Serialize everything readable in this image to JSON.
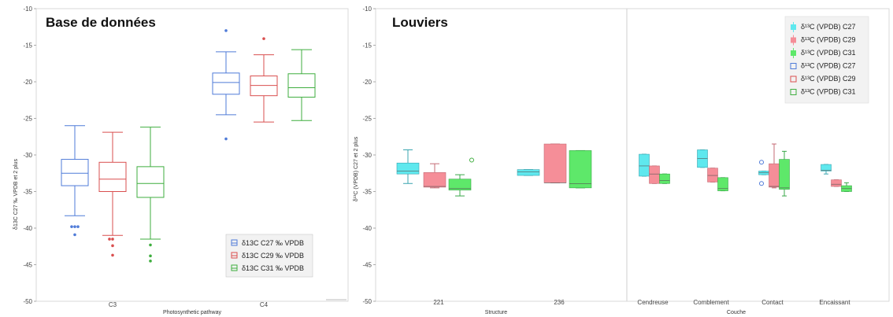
{
  "chart_data": [
    {
      "type": "boxplot",
      "title": "Base de données",
      "xlabel": "Photosynthetic pathway",
      "ylabel": "δ13C C27 ‰ VPDB et 2 plus",
      "ylim": [
        -50,
        -10
      ],
      "yticks": [
        -50,
        -45,
        -40,
        -35,
        -30,
        -25,
        -20,
        -15,
        -10
      ],
      "categories": [
        "C3",
        "C4"
      ],
      "legend_position": "bottom-right",
      "series": [
        {
          "name": "δ13C C27 ‰ VPDB",
          "color": "#4f7bd8",
          "boxes": [
            {
              "category": "C3",
              "whisker_low": -38.3,
              "q1": -34.2,
              "median": -32.5,
              "q3": -30.6,
              "whisker_high": -26.0,
              "outliers": [
                -39.8,
                -39.8,
                -39.8,
                -40.9
              ]
            },
            {
              "category": "C4",
              "whisker_low": -24.5,
              "q1": -21.7,
              "median": -20.1,
              "q3": -18.8,
              "whisker_high": -15.9,
              "outliers": [
                -13.0,
                -27.8
              ]
            }
          ]
        },
        {
          "name": "δ13C C29 ‰ VPDB",
          "color": "#d94f4f",
          "boxes": [
            {
              "category": "C3",
              "whisker_low": -41.0,
              "q1": -35.0,
              "median": -33.3,
              "q3": -31.0,
              "whisker_high": -26.9,
              "outliers": [
                -41.5,
                -41.5,
                -42.4,
                -43.7
              ]
            },
            {
              "category": "C4",
              "whisker_low": -25.5,
              "q1": -21.9,
              "median": -20.5,
              "q3": -19.2,
              "whisker_high": -16.3,
              "outliers": [
                -14.1
              ]
            }
          ]
        },
        {
          "name": "δ13C C31 ‰ VPDB",
          "color": "#3fae3f",
          "boxes": [
            {
              "category": "C3",
              "whisker_low": -41.5,
              "q1": -35.8,
              "median": -33.9,
              "q3": -31.6,
              "whisker_high": -26.2,
              "outliers": [
                -42.3,
                -43.8,
                -44.5
              ]
            },
            {
              "category": "C4",
              "whisker_low": -25.3,
              "q1": -22.1,
              "median": -20.8,
              "q3": -18.9,
              "whisker_high": -15.6,
              "outliers": []
            }
          ]
        }
      ]
    },
    {
      "type": "boxplot",
      "title": "Louviers",
      "xlabel_left": "Structure",
      "xlabel_right": "Couche",
      "ylabel": "δ¹³C (VPDB) C27 et 2 plus",
      "ylim": [
        -50,
        -10
      ],
      "yticks": [
        -50,
        -45,
        -40,
        -35,
        -30,
        -25,
        -20,
        -15,
        -10
      ],
      "categories_left": [
        "221",
        "236"
      ],
      "categories_right": [
        "Cendreuse",
        "Comblement",
        "Contact",
        "Encaissant"
      ],
      "legend_position": "top-right",
      "legend": [
        {
          "label": "δ¹³C (VPDB) C27",
          "color": "#5fe8ee",
          "style": "filled"
        },
        {
          "label": "δ¹³C (VPDB) C29",
          "color": "#f58e98",
          "style": "filled"
        },
        {
          "label": "δ¹³C (VPDB) C31",
          "color": "#5ee86a",
          "style": "filled"
        },
        {
          "label": "δ¹³C (VPDB) C27",
          "color": "#4f7bd8",
          "style": "open"
        },
        {
          "label": "δ¹³C (VPDB) C29",
          "color": "#d94f4f",
          "style": "open"
        },
        {
          "label": "δ¹³C (VPDB) C31",
          "color": "#3fae3f",
          "style": "open"
        }
      ],
      "series": [
        {
          "name": "δ¹³C (VPDB) C27",
          "fill": "#5fe8ee",
          "stroke": "#3aa6b0",
          "boxes": [
            {
              "category": "221",
              "whisker_low": -33.9,
              "q1": -32.6,
              "median": -32.2,
              "q3": -31.1,
              "whisker_high": -29.3,
              "outliers": []
            },
            {
              "category": "236",
              "whisker_low": -32.8,
              "q1": -32.8,
              "median": -32.3,
              "q3": -32.0,
              "whisker_high": -32.0,
              "outliers": []
            },
            {
              "category": "Cendreuse",
              "whisker_low": -32.9,
              "q1": -32.9,
              "median": -31.5,
              "q3": -29.9,
              "whisker_high": -29.9,
              "outliers": []
            },
            {
              "category": "Comblement",
              "whisker_low": -31.7,
              "q1": -31.7,
              "median": -30.5,
              "q3": -29.3,
              "whisker_high": -29.3,
              "outliers": []
            },
            {
              "category": "Contact",
              "whisker_low": -32.7,
              "q1": -32.7,
              "median": -32.4,
              "q3": -32.2,
              "whisker_high": -32.2,
              "outliers": [
                -31.0,
                -33.9
              ]
            },
            {
              "category": "Encaissant",
              "whisker_low": -32.6,
              "q1": -32.2,
              "median": -32.1,
              "q3": -31.3,
              "whisker_high": -31.3,
              "outliers": []
            }
          ]
        },
        {
          "name": "δ¹³C (VPDB) C29",
          "fill": "#f58e98",
          "stroke": "#c56b75",
          "boxes": [
            {
              "category": "221",
              "whisker_low": -34.5,
              "q1": -34.4,
              "median": -34.3,
              "q3": -32.4,
              "whisker_high": -31.2,
              "outliers": []
            },
            {
              "category": "236",
              "whisker_low": -33.8,
              "q1": -33.8,
              "median": -33.8,
              "q3": -28.5,
              "whisker_high": -28.5,
              "outliers": []
            },
            {
              "category": "Cendreuse",
              "whisker_low": -33.9,
              "q1": -33.9,
              "median": -32.6,
              "q3": -31.5,
              "whisker_high": -31.5,
              "outliers": []
            },
            {
              "category": "Comblement",
              "whisker_low": -33.7,
              "q1": -33.7,
              "median": -32.8,
              "q3": -31.8,
              "whisker_high": -31.8,
              "outliers": []
            },
            {
              "category": "Contact",
              "whisker_low": -34.5,
              "q1": -34.4,
              "median": -34.3,
              "q3": -31.2,
              "whisker_high": -28.5,
              "outliers": []
            },
            {
              "category": "Encaissant",
              "whisker_low": -34.3,
              "q1": -34.3,
              "median": -34.0,
              "q3": -33.4,
              "whisker_high": -33.4,
              "outliers": []
            }
          ]
        },
        {
          "name": "δ¹³C (VPDB) C31",
          "fill": "#5ee86a",
          "stroke": "#3aa84a",
          "boxes": [
            {
              "category": "221",
              "whisker_low": -35.6,
              "q1": -34.8,
              "median": -34.6,
              "q3": -33.3,
              "whisker_high": -32.7,
              "outliers": [
                -30.7
              ]
            },
            {
              "category": "236",
              "whisker_low": -34.5,
              "q1": -34.5,
              "median": -33.9,
              "q3": -29.4,
              "whisker_high": -29.4,
              "outliers": []
            },
            {
              "category": "Cendreuse",
              "whisker_low": -33.9,
              "q1": -33.9,
              "median": -33.5,
              "q3": -32.6,
              "whisker_high": -32.6,
              "outliers": []
            },
            {
              "category": "Comblement",
              "whisker_low": -34.9,
              "q1": -34.9,
              "median": -34.6,
              "q3": -33.1,
              "whisker_high": -33.1,
              "outliers": []
            },
            {
              "category": "Contact",
              "whisker_low": -35.6,
              "q1": -34.7,
              "median": -34.5,
              "q3": -30.6,
              "whisker_high": -29.5,
              "outliers": []
            },
            {
              "category": "Encaissant",
              "whisker_low": -35.0,
              "q1": -35.0,
              "median": -34.6,
              "q3": -34.2,
              "whisker_high": -33.8,
              "outliers": []
            }
          ]
        }
      ]
    }
  ]
}
